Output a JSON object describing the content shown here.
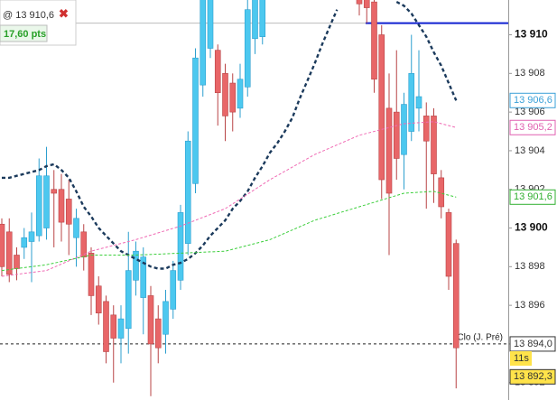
{
  "chart_data": {
    "type": "candlestick",
    "up_color": "#4cc8ef",
    "down_color": "#e86668",
    "ylim": [
      13891.1,
      13911.8
    ],
    "yticks": [
      {
        "value": 13892,
        "label": "13 892"
      },
      {
        "value": 13894,
        "label": "13 894"
      },
      {
        "value": 13896,
        "label": "13 896"
      },
      {
        "value": 13898,
        "label": "13 898"
      },
      {
        "value": 13900,
        "label": "13 900"
      },
      {
        "value": 13902,
        "label": "13 902"
      },
      {
        "value": 13904,
        "label": "13 904"
      },
      {
        "value": 13906,
        "label": "13 906"
      },
      {
        "value": 13908,
        "label": "13 908"
      },
      {
        "value": 13910,
        "label": "13 910"
      }
    ],
    "bold_ticks": [
      13900,
      13910
    ],
    "open": [
      13900.2,
      13899.8,
      13898.6,
      13899.0,
      13899.3,
      13899.6,
      13900.0,
      13902.0,
      13902.0,
      13901.5,
      13899.5,
      13899.8,
      13898.7,
      13897.0,
      13896.2,
      13895.5,
      13894.3,
      13894.8,
      13897.3,
      13896.4,
      13896.5,
      13895.3,
      13894.5,
      13895.8,
      13897.3,
      13899.2,
      13902.3,
      13907.4,
      13909.3,
      13909.2,
      13908.0,
      13907.5,
      13906.2,
      13907.3,
      13909.8,
      13909.9,
      null,
      null,
      null,
      null,
      null,
      null,
      null,
      null,
      null,
      null,
      null,
      null,
      13912.0,
      13912.0,
      13911.7,
      13910.0,
      13906.2,
      13906.0,
      13903.8,
      13905.0,
      13906.2,
      13905.8,
      13905.8,
      13902.6,
      13900.8,
      13899.2
    ],
    "high": [
      13900.5,
      13900.5,
      13899.0,
      13900.0,
      13900.8,
      13903.6,
      13904.2,
      13903.0,
      13902.8,
      13902.5,
      13901.0,
      13900.2,
      13899.0,
      13897.5,
      13896.5,
      13896.0,
      13896.0,
      13899.8,
      13899.3,
      13899.0,
      13897.0,
      13896.0,
      13896.8,
      13898.3,
      13901.2,
      13905.0,
      13909.3,
      13912.0,
      13912.0,
      13909.5,
      13908.5,
      13908.0,
      13908.5,
      13912.0,
      13912.0,
      13912.0,
      null,
      null,
      null,
      null,
      null,
      null,
      null,
      null,
      null,
      null,
      null,
      null,
      13912.0,
      13912.0,
      13912.0,
      13910.5,
      13908.0,
      13909.2,
      13907.0,
      13910.0,
      13909.2,
      13906.5,
      13906.2,
      13903.0,
      13901.0,
      13899.4
    ],
    "low": [
      13897.5,
      13897.2,
      13897.3,
      13898.4,
      13897.2,
      13899.3,
      13899.4,
      13899.0,
      13899.3,
      13898.6,
      13898.0,
      13897.8,
      13895.5,
      13895.0,
      13893.0,
      13892.0,
      13893.0,
      13893.5,
      13896.5,
      13894.5,
      13891.3,
      13893.0,
      13893.5,
      13895.3,
      13896.8,
      13898.6,
      13901.8,
      13906.8,
      13908.8,
      13905.3,
      13904.5,
      13905.0,
      13905.7,
      13906.8,
      13909.0,
      13909.5,
      null,
      null,
      null,
      null,
      null,
      null,
      null,
      null,
      null,
      null,
      null,
      null,
      13911.0,
      13910.6,
      13907.0,
      13901.5,
      13898.6,
      13902.5,
      13902.0,
      13904.5,
      13905.0,
      13901.0,
      13901.3,
      13900.5,
      13896.8,
      13891.7
    ],
    "close": [
      13898.0,
      13897.6,
      13897.9,
      13899.5,
      13899.8,
      13902.7,
      13902.7,
      13901.8,
      13900.3,
      13900.2,
      13900.5,
      13898.5,
      13896.5,
      13895.6,
      13893.6,
      13894.3,
      13895.3,
      13897.8,
      13898.8,
      13898.5,
      13894.0,
      13893.8,
      13896.2,
      13897.8,
      13900.8,
      13904.5,
      13908.8,
      13912.0,
      13912.0,
      13907.0,
      13905.8,
      13906.0,
      13907.7,
      13911.3,
      13912.0,
      13912.0,
      null,
      null,
      null,
      null,
      null,
      null,
      null,
      null,
      null,
      null,
      null,
      null,
      13911.6,
      13911.4,
      13907.7,
      13902.5,
      13901.8,
      13903.6,
      13906.4,
      13908.0,
      13906.8,
      13904.5,
      13902.8,
      13901.1,
      13897.5,
      13893.8
    ],
    "lines": [
      {
        "color": "#1b3a5c",
        "width": 2.4,
        "dash": "4 3",
        "values": [
          13902.6,
          13902.6,
          13902.7,
          13902.8,
          13902.9,
          13903.0,
          13903.2,
          13903.3,
          13903.0,
          13902.6,
          13901.9,
          13901.1,
          13900.6,
          13900.0,
          13899.6,
          13899.2,
          13898.8,
          13898.6,
          13898.4,
          13898.2,
          13898.0,
          13897.9,
          13897.9,
          13898.1,
          13898.2,
          13898.4,
          13898.7,
          13899.1,
          13899.6,
          13900.0,
          13900.4,
          13901.0,
          13901.4,
          13901.9,
          13902.6,
          13903.2,
          13903.9,
          13904.4,
          13905.0,
          13905.7,
          13906.7,
          13907.6,
          13908.5,
          13909.5,
          13910.4,
          13911.3,
          null,
          null,
          null,
          null,
          null,
          null,
          null,
          13911.7,
          13911.5,
          13911.1,
          13910.5,
          13909.9,
          13909.1,
          13908.4,
          13907.5,
          13906.6
        ]
      },
      {
        "color": "#f06ab4",
        "width": 1,
        "dash": "3 2",
        "x": [
          0,
          6,
          12,
          18,
          24,
          30,
          36,
          42,
          48,
          54,
          58,
          61
        ],
        "values": [
          13897.5,
          13897.8,
          13898.8,
          13899.4,
          13900.1,
          13901.0,
          13902.5,
          13903.8,
          13904.8,
          13905.4,
          13905.5,
          13905.2
        ]
      },
      {
        "color": "#3ccf3c",
        "width": 1,
        "dash": "3 2",
        "x": [
          0,
          6,
          12,
          18,
          24,
          30,
          36,
          42,
          48,
          54,
          58,
          61
        ],
        "values": [
          13897.8,
          13898.1,
          13898.6,
          13898.6,
          13898.7,
          13898.8,
          13899.4,
          13900.4,
          13901.1,
          13901.8,
          13901.9,
          13901.6
        ]
      }
    ],
    "order": {
      "value": 13910.6,
      "label": "@ 13 910,6",
      "distance": "17,60 pts"
    },
    "reference": {
      "value": 13894.0,
      "name": "Clo (J. Pré)"
    },
    "tags": [
      {
        "value": 13906.6,
        "label": "13 906,6",
        "color": "#3aa0d8",
        "background": "#ffffff"
      },
      {
        "value": 13905.2,
        "label": "13 905,2",
        "color": "#e060b0",
        "background": "#ffffff"
      },
      {
        "value": 13901.6,
        "label": "13 901,6",
        "color": "#30b030",
        "background": "#ffffff"
      },
      {
        "value": 13894.0,
        "label": "13 894,0",
        "color": "#333333",
        "background": "#ffffff"
      },
      {
        "value": 13892.3,
        "label": "13 892,3",
        "color": "#333333",
        "background": "#ffe34a"
      }
    ],
    "timer": "11s"
  }
}
